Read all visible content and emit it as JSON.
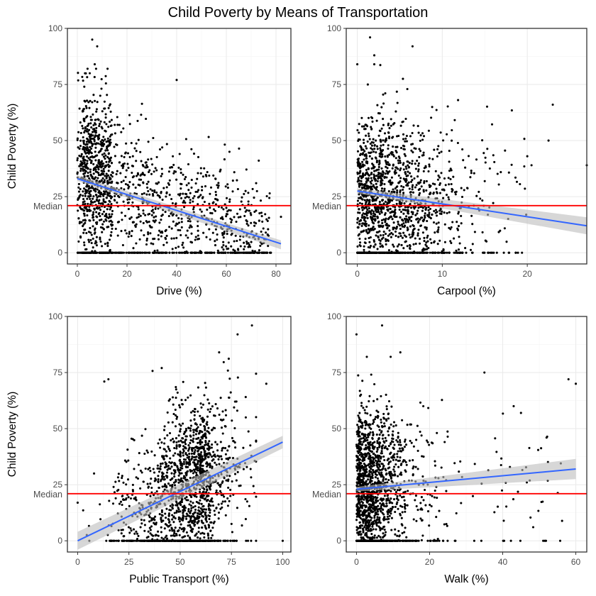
{
  "title": "Child Poverty by Means of Transportation",
  "colors": {
    "points": "#000000",
    "trend": "#3366FF",
    "ribbon": "#BDBDBD",
    "median": "#FF0000",
    "grid_major": "#EBEBEB",
    "grid_minor": "#F5F5F5",
    "panel_border": "#333333"
  },
  "chart_data": [
    {
      "type": "scatter",
      "xlabel": "Drive (%)",
      "ylabel": "Child Poverty (%)",
      "xlim": [
        -4,
        86
      ],
      "ylim": [
        -5,
        100
      ],
      "xticks": [
        0,
        20,
        40,
        60,
        80
      ],
      "yticks": [
        0,
        25,
        50,
        75,
        100
      ],
      "median": 21,
      "median_label": "Median",
      "trend": {
        "x": [
          0,
          82
        ],
        "y": [
          33,
          4
        ],
        "band": [
          [
            1.5,
            1.0
          ],
          [
            1.5,
            2.5
          ]
        ]
      },
      "sample_points": {
        "x": [
          3,
          5,
          6,
          7,
          8,
          40,
          60,
          62,
          72,
          82
        ],
        "y": [
          45,
          80,
          95,
          84,
          92,
          77,
          20,
          8,
          31,
          16
        ]
      },
      "grid": true,
      "legend": "none"
    },
    {
      "type": "scatter",
      "xlabel": "Carpool (%)",
      "ylabel": "",
      "xlim": [
        -1.3,
        27
      ],
      "ylim": [
        -5,
        100
      ],
      "xticks": [
        0,
        10,
        20
      ],
      "yticks": [
        0,
        25,
        50,
        75,
        100
      ],
      "median": 21,
      "median_label": "Median",
      "trend": {
        "x": [
          0,
          27
        ],
        "y": [
          27.5,
          12
        ],
        "band": [
          [
            1.2,
            1.0
          ],
          [
            3.8,
            3.8
          ]
        ]
      },
      "sample_points": {
        "x": [
          0,
          1.5,
          2,
          6.5,
          20,
          20.5,
          22.5,
          23,
          27
        ],
        "y": [
          84,
          96,
          88,
          92,
          43,
          39,
          50,
          66,
          39
        ]
      },
      "grid": true,
      "legend": "none"
    },
    {
      "type": "scatter",
      "xlabel": "Public Transport (%)",
      "ylabel": "Child Poverty (%)",
      "xlim": [
        -5,
        104
      ],
      "ylim": [
        -5,
        100
      ],
      "xticks": [
        0,
        25,
        50,
        75,
        100
      ],
      "yticks": [
        0,
        25,
        50,
        75,
        100
      ],
      "median": 21,
      "median_label": "Median",
      "trend": {
        "x": [
          0,
          100
        ],
        "y": [
          0,
          44
        ],
        "band": [
          [
            4.0,
            4.0
          ],
          [
            2.8,
            2.8
          ]
        ]
      },
      "sample_points": {
        "x": [
          0,
          8,
          13,
          15,
          41,
          69,
          78,
          82,
          85,
          92,
          100
        ],
        "y": [
          17,
          30,
          71,
          72,
          77,
          84,
          92,
          55,
          96,
          70,
          0
        ]
      },
      "grid": true,
      "legend": "none"
    },
    {
      "type": "scatter",
      "xlabel": "Walk (%)",
      "ylabel": "",
      "xlim": [
        -2.8,
        63
      ],
      "ylim": [
        -5,
        100
      ],
      "xticks": [
        0,
        20,
        40,
        60
      ],
      "yticks": [
        0,
        25,
        50,
        75,
        100
      ],
      "median": 21,
      "median_label": "Median",
      "trend": {
        "x": [
          0,
          60
        ],
        "y": [
          23,
          32
        ],
        "band": [
          [
            1.0,
            1.0
          ],
          [
            4.5,
            4.5
          ]
        ]
      },
      "sample_points": {
        "x": [
          0,
          7,
          12,
          35,
          43,
          45,
          52,
          58,
          60
        ],
        "y": [
          92,
          96,
          84,
          75,
          60,
          57,
          46,
          72,
          70
        ]
      },
      "grid": true,
      "legend": "none"
    }
  ]
}
